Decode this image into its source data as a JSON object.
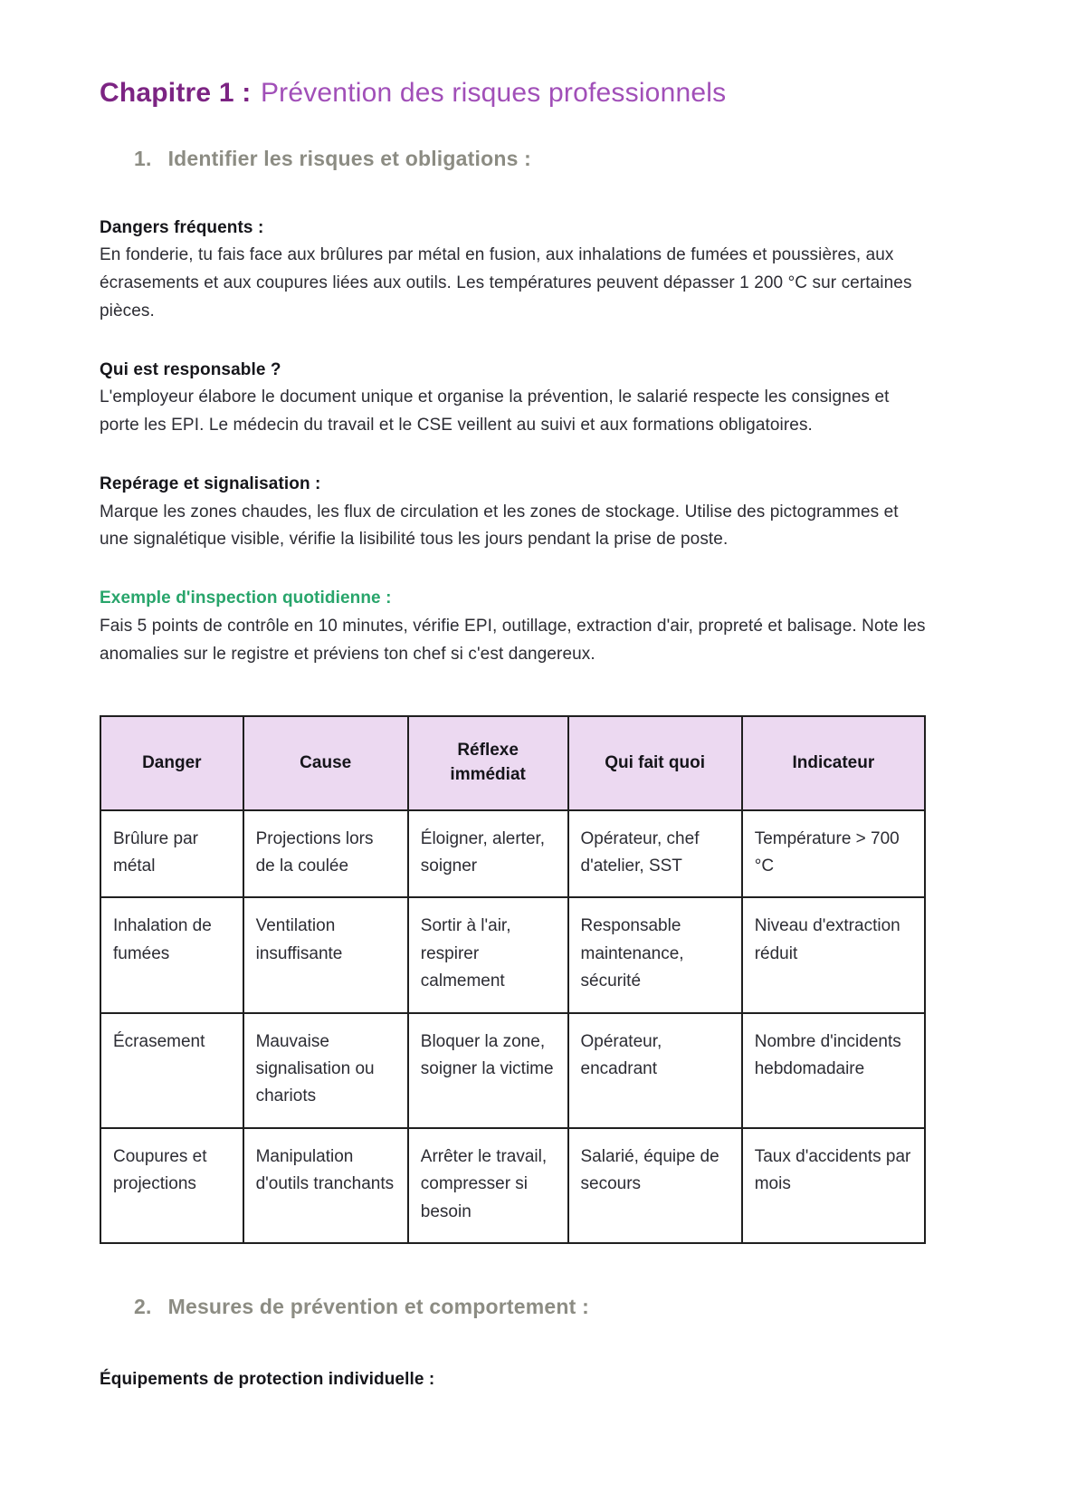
{
  "theme": {
    "chapter-prefix": "#7c2483",
    "chapter-title": "#a14fb8",
    "section-heading": "#8c8c83",
    "accent-green": "#28a56b",
    "table-header-bg": "#ecd9f1",
    "text": "#2c2c33",
    "heading-text": "#15151a",
    "border": "#1f1f1f",
    "page-bg": "#ffffff"
  },
  "doc": {
    "chapter": {
      "prefix": "Chapitre 1 :",
      "title": "Prévention des risques professionnels"
    },
    "section1": {
      "number": "1.",
      "heading": "Identifier les risques et obligations :",
      "blocks": [
        {
          "heading": "Dangers fréquents :",
          "body": "En fonderie, tu fais face aux brûlures par métal en fusion, aux inhalations de fumées et poussières, aux écrasements et aux coupures liées aux outils. Les températures peuvent dépasser 1 200 °C sur certaines pièces."
        },
        {
          "heading": "Qui est responsable ?",
          "body": "L'employeur élabore le document unique et organise la prévention, le salarié respecte les consignes et porte les EPI. Le médecin du travail et le CSE veillent au suivi et aux formations obligatoires."
        },
        {
          "heading": "Repérage et signalisation :",
          "body": "Marque les zones chaudes, les flux de circulation et les zones de stockage. Utilise des pictogrammes et une signalétique visible, vérifie la lisibilité tous les jours pendant la prise de poste."
        },
        {
          "heading": "Exemple d'inspection quotidienne :",
          "body": "Fais 5 points de contrôle en 10 minutes, vérifie EPI, outillage, extraction d'air, propreté et balisage. Note les anomalies sur le registre et préviens ton chef si c'est dangereux."
        }
      ]
    },
    "table": {
      "headers": [
        "Danger",
        "Cause",
        "Réflexe immédiat",
        "Qui fait quoi",
        "Indicateur"
      ],
      "rows": [
        [
          "Brûlure par métal",
          "Projections lors de la coulée",
          "Éloigner, alerter, soigner",
          "Opérateur, chef d'atelier, SST",
          "Température > 700 °C"
        ],
        [
          "Inhalation de fumées",
          "Ventilation insuffisante",
          "Sortir à l'air, respirer calmement",
          "Responsable maintenance, sécurité",
          "Niveau d'extraction réduit"
        ],
        [
          "Écrasement",
          "Mauvaise signalisation ou chariots",
          "Bloquer la zone, soigner la victime",
          "Opérateur, encadrant",
          "Nombre d'incidents hebdomadaire"
        ],
        [
          "Coupures et projections",
          "Manipulation d'outils tranchants",
          "Arrêter le travail, compresser si besoin",
          "Salarié, équipe de secours",
          "Taux d'accidents par mois"
        ]
      ]
    },
    "section2": {
      "number": "2.",
      "heading": "Mesures de prévention et comportement :",
      "sub_heading": "Équipements de protection individuelle :"
    }
  }
}
